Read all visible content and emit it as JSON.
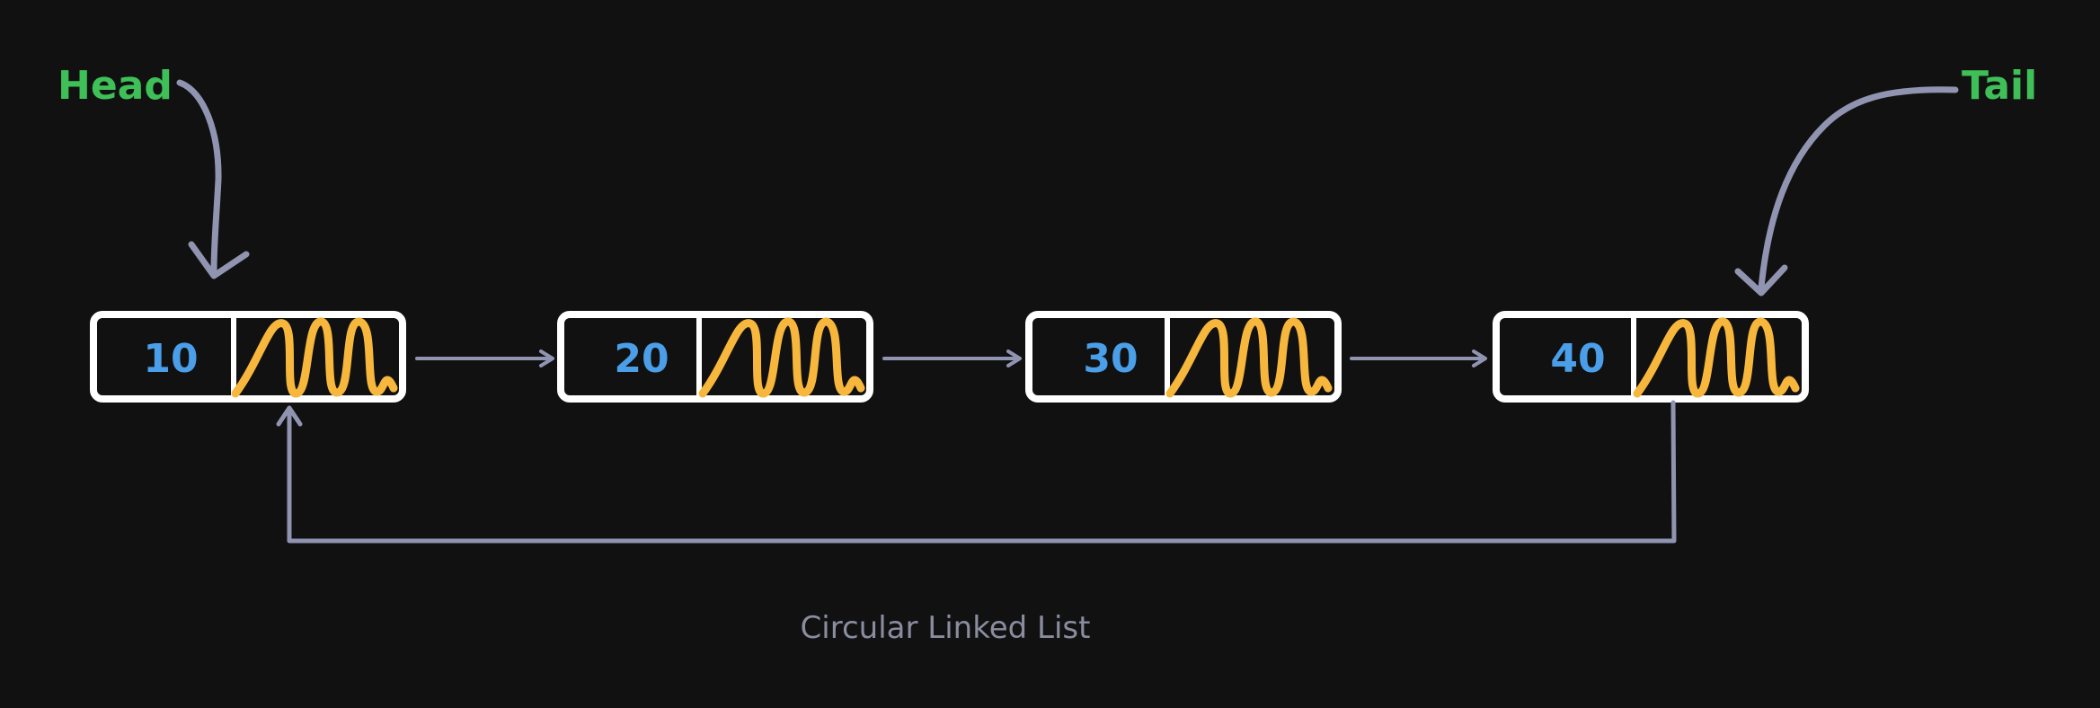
{
  "head_label": "Head",
  "tail_label": "Tail",
  "nodes": [
    {
      "value": "10"
    },
    {
      "value": "20"
    },
    {
      "value": "30"
    },
    {
      "value": "40"
    }
  ],
  "caption": "Circular Linked List",
  "colors": {
    "background": "#111112",
    "node_border": "#ffffff",
    "node_value": "#4a9fe8",
    "pointer_scribble": "#f6b73c",
    "arrow": "#9094b0",
    "label": "#3fbf57",
    "caption": "#8a8d9e"
  }
}
